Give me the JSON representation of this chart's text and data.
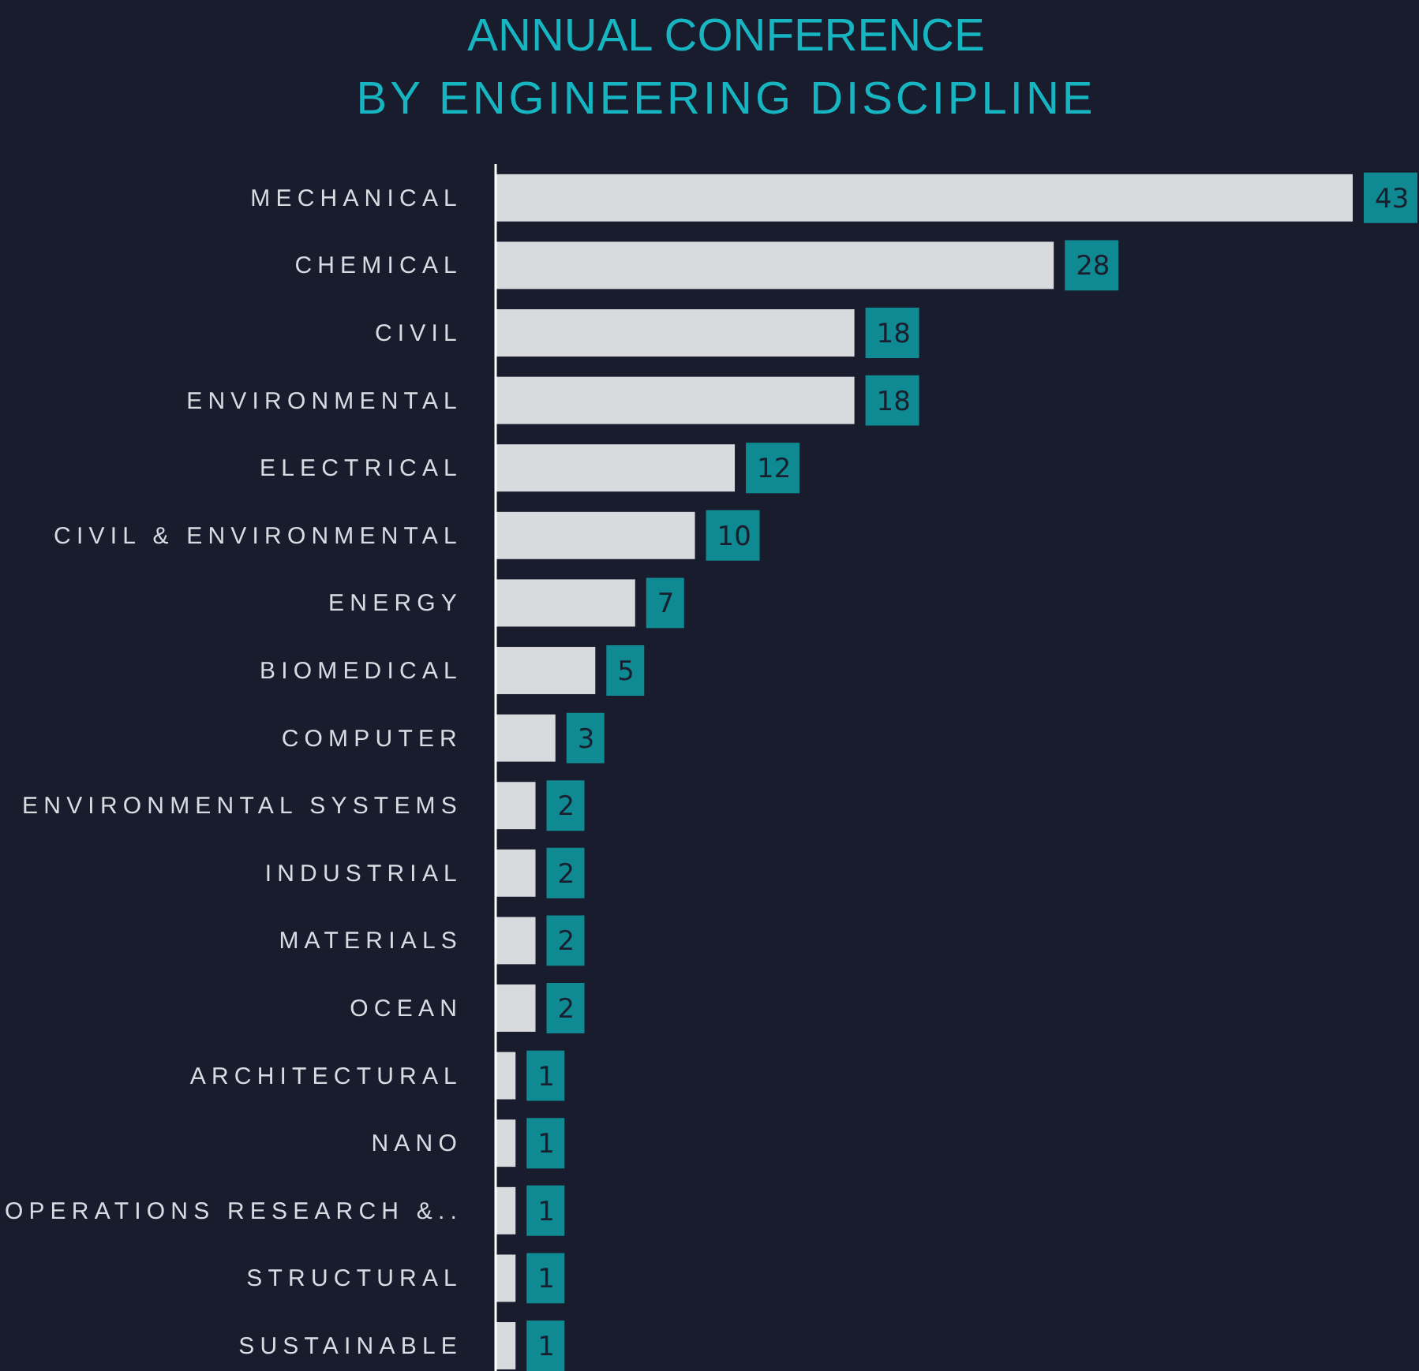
{
  "chart_data": {
    "type": "bar",
    "orientation": "horizontal",
    "title": "ANNUAL CONFERENCE",
    "subtitle": "BY ENGINEERING DISCIPLINE",
    "categories": [
      "MECHANICAL",
      "CHEMICAL",
      "CIVIL",
      "ENVIRONMENTAL",
      "ELECTRICAL",
      "CIVIL & ENVIRONMENTAL",
      "ENERGY",
      "BIOMEDICAL",
      "COMPUTER",
      "ENVIRONMENTAL SYSTEMS",
      "INDUSTRIAL",
      "MATERIALS",
      "OCEAN",
      "ARCHITECTURAL",
      "NANO",
      "OPERATIONS RESEARCH &..",
      "STRUCTURAL",
      "SUSTAINABLE"
    ],
    "values": [
      43,
      28,
      18,
      18,
      12,
      10,
      7,
      5,
      3,
      2,
      2,
      2,
      2,
      1,
      1,
      1,
      1,
      1
    ],
    "color": "#d9dadd",
    "data_labels": true
  }
}
